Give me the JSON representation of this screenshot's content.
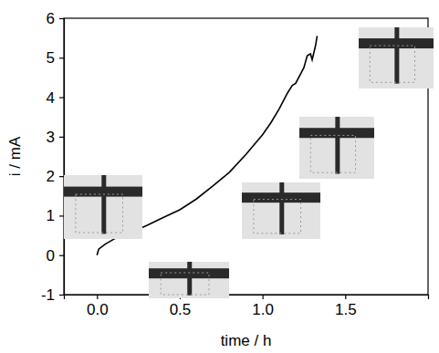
{
  "chart_data": {
    "type": "line",
    "x_label": "time / h",
    "y_label": "i / mA",
    "xlim": [
      -0.2,
      2.0
    ],
    "ylim": [
      -1,
      6
    ],
    "xticks": [
      {
        "value": 0,
        "label": "0.0"
      },
      {
        "value": 0.5,
        "label": "0.5"
      },
      {
        "value": 1,
        "label": "1.0"
      },
      {
        "value": 1.5,
        "label": "1.5"
      }
    ],
    "yticks": [
      -1,
      0,
      1,
      2,
      3,
      4,
      5,
      6
    ],
    "color": "#000000",
    "x": [
      0,
      0.01,
      0.05,
      0.1,
      0.15,
      0.2,
      0.25,
      0.3,
      0.4,
      0.5,
      0.6,
      0.7,
      0.8,
      0.9,
      1.0,
      1.05,
      1.1,
      1.15,
      1.18,
      1.2,
      1.25,
      1.27,
      1.29,
      1.3,
      1.32,
      1.33
    ],
    "values": [
      0.0,
      0.15,
      0.28,
      0.4,
      0.5,
      0.58,
      0.66,
      0.75,
      0.95,
      1.15,
      1.42,
      1.75,
      2.1,
      2.55,
      3.05,
      3.35,
      3.7,
      4.1,
      4.3,
      4.35,
      4.75,
      5.05,
      5.1,
      4.95,
      5.3,
      5.55
    ]
  }
}
